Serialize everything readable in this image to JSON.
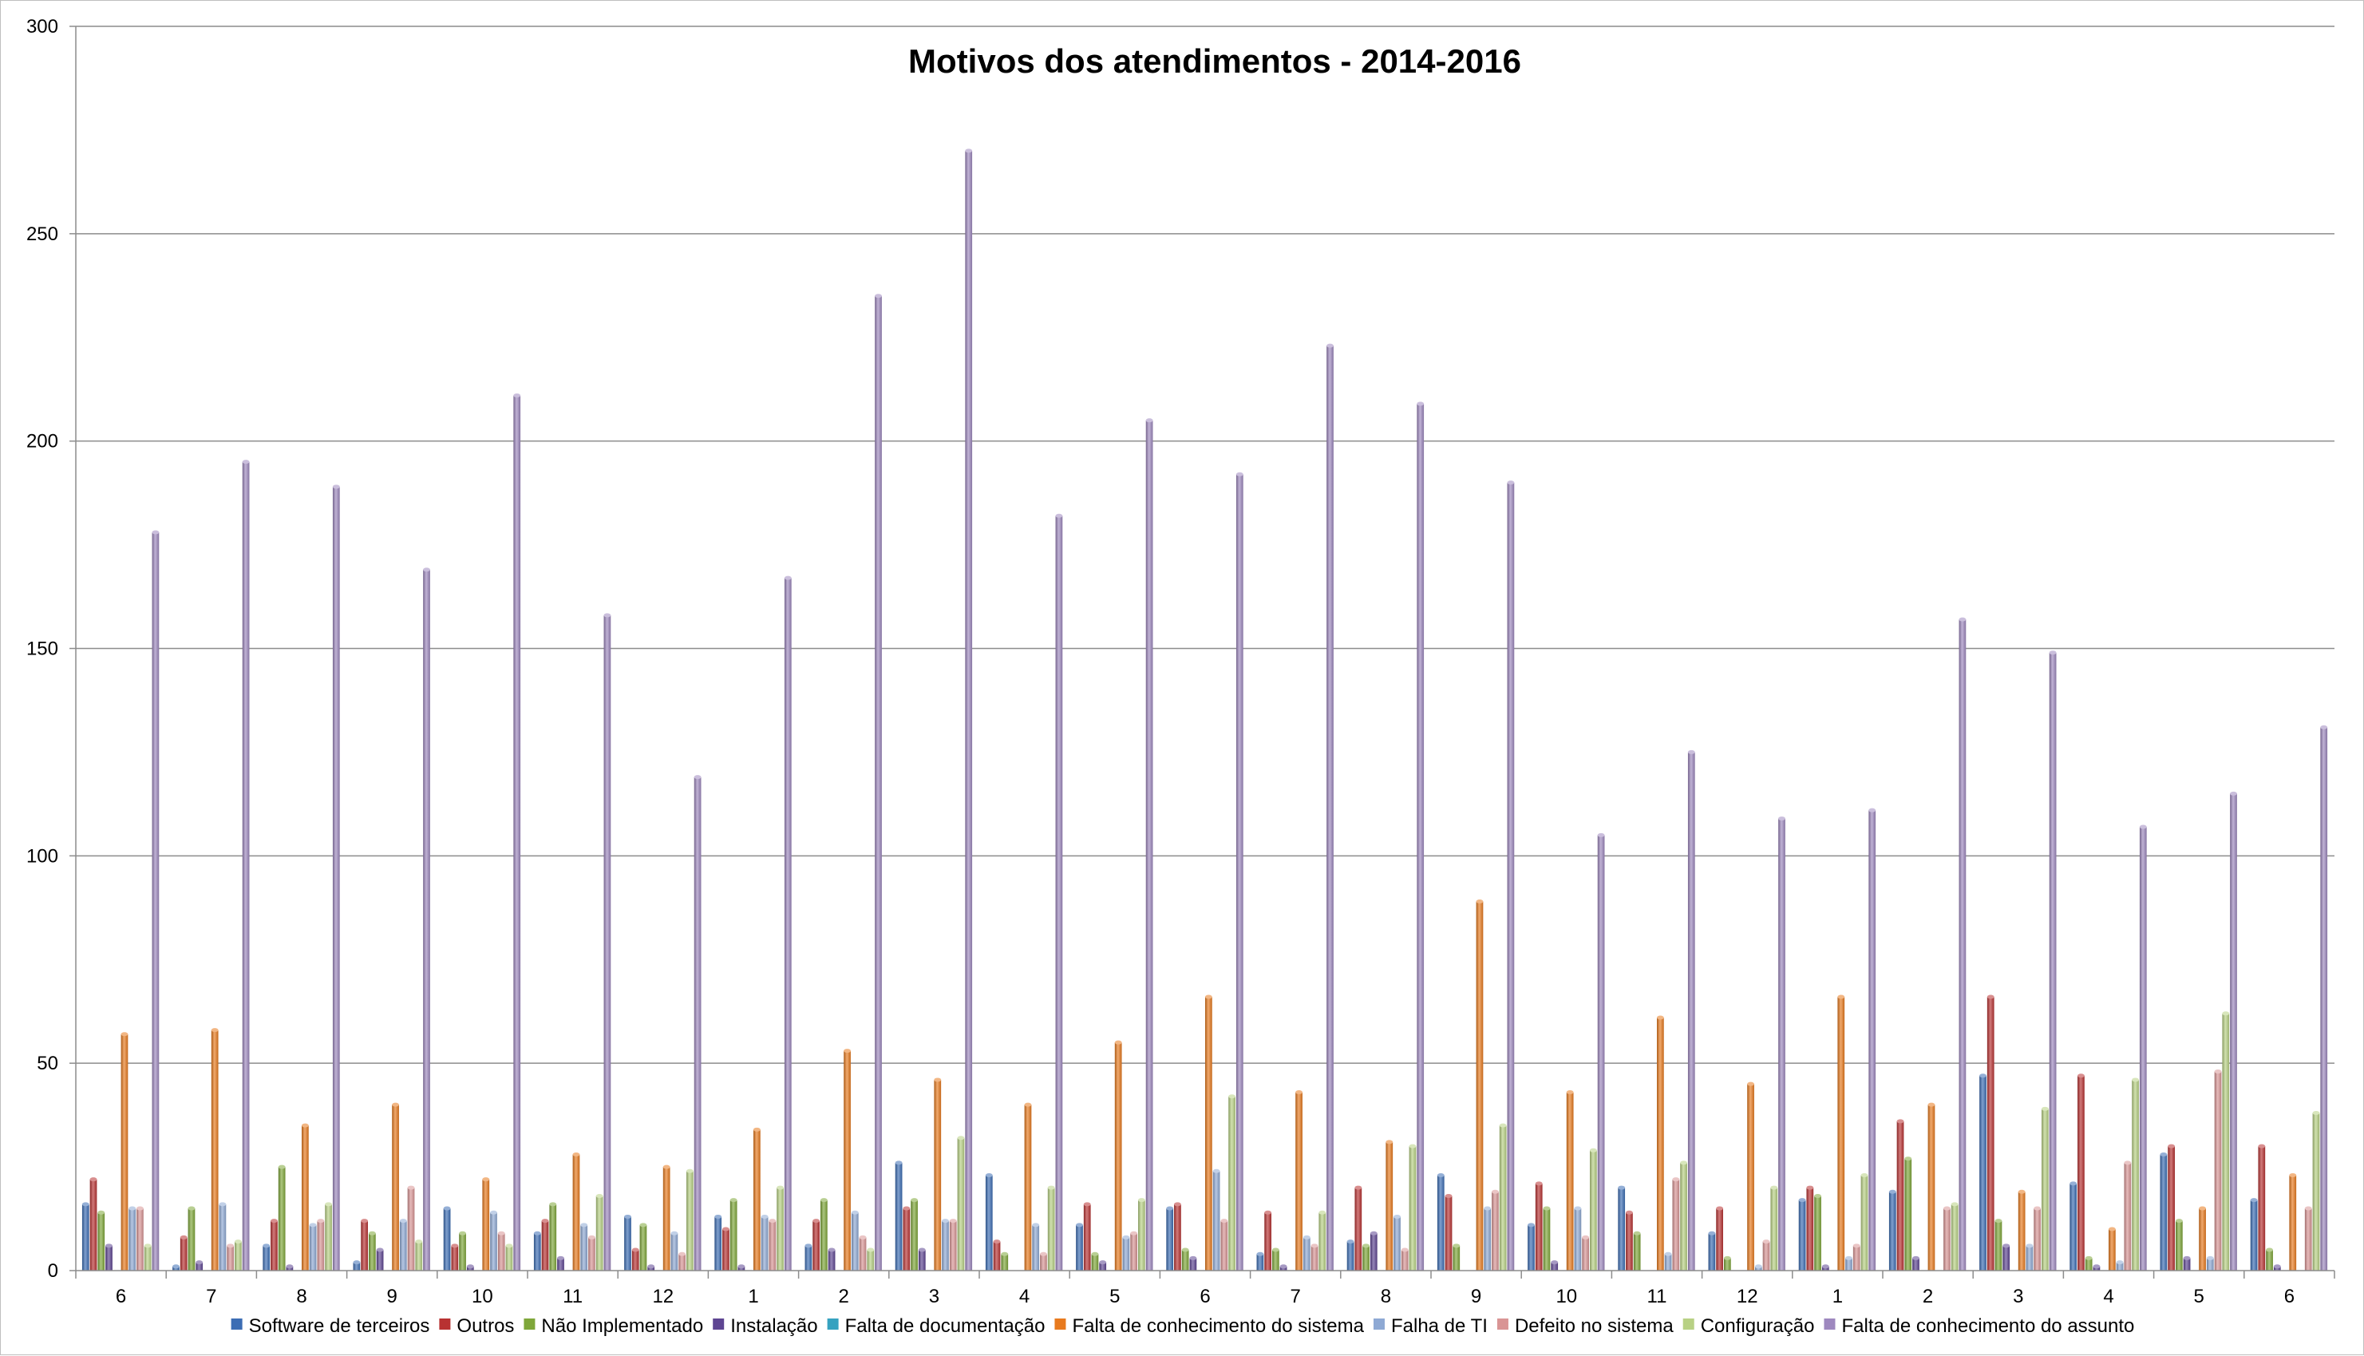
{
  "chart_data": {
    "type": "bar",
    "title": "Motivos dos atendimentos - 2014-2016",
    "xlabel": "",
    "ylabel": "",
    "ylim": [
      0,
      300
    ],
    "yticks": [
      0,
      50,
      100,
      150,
      200,
      250,
      300
    ],
    "grid": true,
    "legend_position": "bottom",
    "categories": [
      "6",
      "7",
      "8",
      "9",
      "10",
      "11",
      "12",
      "1",
      "2",
      "3",
      "4",
      "5",
      "6",
      "7",
      "8",
      "9",
      "10",
      "11",
      "12",
      "1",
      "2",
      "3",
      "4",
      "5",
      "6"
    ],
    "series": [
      {
        "name": "Software de terceiros",
        "color": "#3c6db4",
        "values": [
          16,
          1,
          6,
          2,
          15,
          9,
          13,
          13,
          6,
          26,
          23,
          11,
          15,
          4,
          7,
          23,
          11,
          20,
          9,
          17,
          19,
          47,
          21,
          28,
          17
        ]
      },
      {
        "name": "Outros",
        "color": "#b83232",
        "values": [
          22,
          8,
          12,
          12,
          6,
          12,
          5,
          10,
          12,
          15,
          7,
          16,
          16,
          14,
          20,
          18,
          21,
          14,
          15,
          20,
          36,
          66,
          47,
          30,
          30
        ]
      },
      {
        "name": "Não Implementado",
        "color": "#7fa73a",
        "values": [
          14,
          15,
          25,
          9,
          9,
          16,
          11,
          17,
          17,
          17,
          4,
          4,
          5,
          5,
          6,
          6,
          15,
          9,
          3,
          18,
          27,
          12,
          3,
          12,
          5
        ]
      },
      {
        "name": "Instalação",
        "color": "#5e4592",
        "values": [
          6,
          2,
          1,
          5,
          1,
          3,
          1,
          1,
          5,
          5,
          0,
          2,
          3,
          1,
          9,
          0,
          2,
          0,
          0,
          1,
          3,
          6,
          1,
          3,
          1
        ]
      },
      {
        "name": "Falta de documentação",
        "color": "#36a2c0",
        "values": [
          0,
          0,
          0,
          0,
          0,
          0,
          0,
          0,
          0,
          0,
          0,
          0,
          0,
          0,
          0,
          0,
          0,
          0,
          0,
          0,
          0,
          0,
          0,
          0,
          0
        ]
      },
      {
        "name": "Falta de conhecimento do sistema",
        "color": "#e87a1e",
        "values": [
          57,
          58,
          35,
          40,
          22,
          28,
          25,
          34,
          53,
          46,
          40,
          55,
          66,
          43,
          31,
          89,
          43,
          61,
          45,
          66,
          40,
          19,
          10,
          15,
          23
        ]
      },
      {
        "name": "Falha de TI",
        "color": "#8ea9d4",
        "values": [
          15,
          16,
          11,
          12,
          14,
          11,
          9,
          13,
          14,
          12,
          11,
          8,
          24,
          8,
          13,
          15,
          15,
          4,
          1,
          3,
          0,
          6,
          2,
          3,
          0
        ]
      },
      {
        "name": "Defeito no sistema",
        "color": "#d99595",
        "values": [
          15,
          6,
          12,
          20,
          9,
          8,
          4,
          12,
          8,
          12,
          4,
          9,
          12,
          6,
          5,
          19,
          8,
          22,
          7,
          6,
          15,
          15,
          26,
          48,
          15
        ]
      },
      {
        "name": "Configuração",
        "color": "#b8d184",
        "values": [
          6,
          7,
          16,
          7,
          6,
          18,
          24,
          20,
          5,
          32,
          20,
          17,
          42,
          14,
          30,
          35,
          29,
          26,
          20,
          23,
          16,
          39,
          46,
          62,
          38
        ]
      },
      {
        "name": "Falta de conhecimento do assunto",
        "color": "#9e88bf",
        "values": [
          178,
          195,
          189,
          169,
          211,
          158,
          119,
          167,
          235,
          270,
          182,
          205,
          192,
          223,
          209,
          190,
          105,
          125,
          109,
          111,
          157,
          149,
          107,
          115,
          131
        ]
      }
    ]
  }
}
